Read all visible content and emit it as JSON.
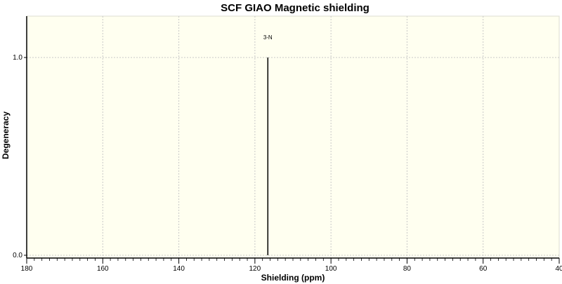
{
  "chart_data": {
    "type": "stick",
    "title": "SCF GIAO Magnetic shielding",
    "xlabel": "Shielding (ppm)",
    "ylabel": "Degeneracy",
    "xlim": [
      180,
      40
    ],
    "x_reversed": true,
    "ylim": [
      0,
      1.2
    ],
    "x_ticks": [
      180,
      160,
      140,
      120,
      100,
      80,
      60,
      40
    ],
    "x_minor_tick_step": 2,
    "y_ticks": [
      0.0,
      1.0
    ],
    "y_tick_labels": [
      "0.0",
      "1.0"
    ],
    "grid": true,
    "peaks": [
      {
        "x": 116.6,
        "y": 1.0,
        "label": "3-N"
      }
    ],
    "colors": {
      "plot_background": "#fffff0",
      "grid": "#c8c8c8",
      "peak": "#000000"
    }
  }
}
